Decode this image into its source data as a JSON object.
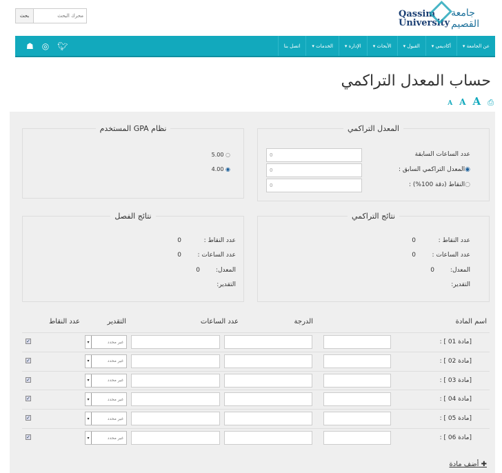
{
  "header": {
    "logo_en_1": "Qassim",
    "logo_en_2": "University",
    "logo_ar": "جامعة القصيم",
    "search_placeholder": "محرك البحث",
    "search_button": "بحث"
  },
  "nav": {
    "items": [
      "عن الجامعة",
      "أكاديمي",
      "القبول",
      "الأبحاث",
      "الإدارة",
      "الخدمات",
      "اتصل بنا"
    ],
    "social": [
      "twitter-icon",
      "instagram-icon",
      "snapchat-icon"
    ]
  },
  "page": {
    "title": "حساب المعدل التراكمي",
    "font_sizes": [
      "A",
      "A",
      "A"
    ]
  },
  "cumulative": {
    "legend": "المعدل التراكمي",
    "prev_hours_label": "عدد الساعات السابقة",
    "prev_gpa_label": "المعدل التراكمي السابق :",
    "points_label": "النقاط (دقة 100%) :",
    "prev_hours": "0",
    "prev_gpa": "0",
    "points": "0",
    "selected": "prev_gpa"
  },
  "gpa_system": {
    "legend": "نظام GPA المستخدم",
    "options": [
      "5.00",
      "4.00"
    ],
    "selected": "4.00"
  },
  "cumulative_results": {
    "legend": "نتائج التراكمي",
    "points_label": "عدد النقاط :",
    "points": "0",
    "hours_label": "عدد الساعات :",
    "hours": "0",
    "gpa_label": "المعدل:",
    "gpa": "0",
    "grade_label": "التقدير:"
  },
  "semester_results": {
    "legend": "نتائج الفصل",
    "points_label": "عدد النقاط :",
    "points": "0",
    "hours_label": "عدد الساعات :",
    "hours": "0",
    "gpa_label": "المعدل:",
    "gpa": "0",
    "grade_label": "التقدير:"
  },
  "table": {
    "headers": {
      "name": "اسم المادة",
      "grade": "الدرجة",
      "hours": "عدد الساعات",
      "rating": "التقدير",
      "points": "عدد النقاط"
    },
    "rows": [
      {
        "name": "[مادة 01 ] :",
        "rating": "غير محدد",
        "checked": true
      },
      {
        "name": "[مادة 02 ] :",
        "rating": "غير محدد",
        "checked": true
      },
      {
        "name": "[مادة 03 ] :",
        "rating": "غير محدد",
        "checked": true
      },
      {
        "name": "[مادة 04 ] :",
        "rating": "غير محدد",
        "checked": true
      },
      {
        "name": "[مادة 05 ] :",
        "rating": "غير محدد",
        "checked": true
      },
      {
        "name": "[مادة 06 ] :",
        "rating": "غير محدد",
        "checked": true
      }
    ]
  },
  "add_subject": "أضف مادة"
}
